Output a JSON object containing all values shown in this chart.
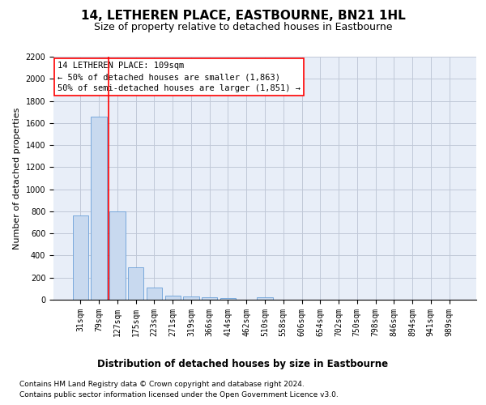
{
  "title": "14, LETHEREN PLACE, EASTBOURNE, BN21 1HL",
  "subtitle": "Size of property relative to detached houses in Eastbourne",
  "xlabel": "Distribution of detached houses by size in Eastbourne",
  "ylabel": "Number of detached properties",
  "categories": [
    "31sqm",
    "79sqm",
    "127sqm",
    "175sqm",
    "223sqm",
    "271sqm",
    "319sqm",
    "366sqm",
    "414sqm",
    "462sqm",
    "510sqm",
    "558sqm",
    "606sqm",
    "654sqm",
    "702sqm",
    "750sqm",
    "798sqm",
    "846sqm",
    "894sqm",
    "941sqm",
    "989sqm"
  ],
  "values": [
    760,
    1660,
    800,
    295,
    110,
    38,
    28,
    20,
    18,
    0,
    20,
    0,
    0,
    0,
    0,
    0,
    0,
    0,
    0,
    0,
    0
  ],
  "bar_color": "#c8d9ef",
  "bar_edge_color": "#6a9fd8",
  "vline_x": 1.5,
  "vline_color": "red",
  "annotation_text": "14 LETHEREN PLACE: 109sqm\n← 50% of detached houses are smaller (1,863)\n50% of semi-detached houses are larger (1,851) →",
  "annotation_box_color": "white",
  "annotation_box_edge": "red",
  "footer_line1": "Contains HM Land Registry data © Crown copyright and database right 2024.",
  "footer_line2": "Contains public sector information licensed under the Open Government Licence v3.0.",
  "ylim": [
    0,
    2200
  ],
  "yticks": [
    0,
    200,
    400,
    600,
    800,
    1000,
    1200,
    1400,
    1600,
    1800,
    2000,
    2200
  ],
  "grid_color": "#c0c8d8",
  "bg_color": "#e8eef8",
  "title_fontsize": 11,
  "subtitle_fontsize": 9,
  "ylabel_fontsize": 8,
  "xlabel_fontsize": 8.5,
  "tick_fontsize": 7,
  "annotation_fontsize": 7.5,
  "footer_fontsize": 6.5
}
